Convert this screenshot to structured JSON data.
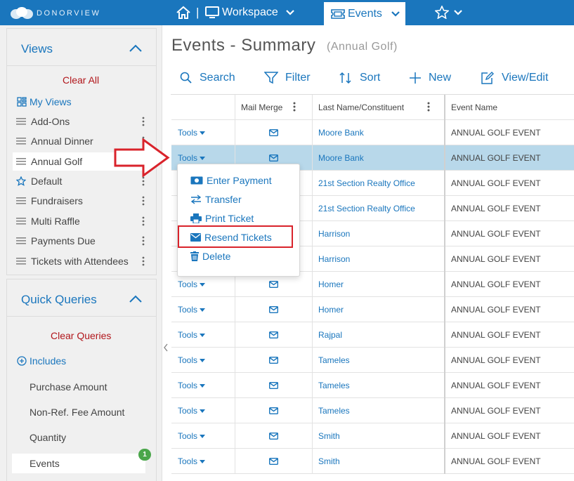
{
  "app": {
    "logo_text": "DONORVIEW"
  },
  "topnav": {
    "separator": "|",
    "workspace_label": "Workspace",
    "events_label": "Events"
  },
  "sidebar": {
    "views": {
      "title": "Views",
      "clear_all": "Clear All",
      "my_views": "My Views",
      "items": [
        {
          "label": "Add-Ons",
          "icon": "drag-handle-icon"
        },
        {
          "label": "Annual Dinner",
          "icon": "drag-handle-icon"
        },
        {
          "label": "Annual Golf",
          "icon": "drag-handle-icon",
          "active": true
        },
        {
          "label": "Default",
          "icon": "star-icon"
        },
        {
          "label": "Fundraisers",
          "icon": "drag-handle-icon"
        },
        {
          "label": "Multi Raffle",
          "icon": "drag-handle-icon"
        },
        {
          "label": "Payments Due",
          "icon": "drag-handle-icon"
        },
        {
          "label": "Tickets with Attendees",
          "icon": "drag-handle-icon"
        }
      ]
    },
    "quick_queries": {
      "title": "Quick Queries",
      "clear_queries": "Clear Queries",
      "includes": "Includes",
      "items": [
        {
          "label": "Purchase Amount"
        },
        {
          "label": "Non-Ref. Fee Amount"
        },
        {
          "label": "Quantity"
        },
        {
          "label": "Events",
          "active": true,
          "badge": "1"
        }
      ]
    }
  },
  "main": {
    "title": "Events - Summary",
    "subtitle": "(Annual Golf)",
    "toolbar": {
      "search": "Search",
      "filter": "Filter",
      "sort": "Sort",
      "new": "New",
      "view_edit": "View/Edit"
    },
    "grid": {
      "headers": [
        "",
        "Mail Merge",
        "Last Name/Constituent",
        "Event Name"
      ],
      "tools_label": "Tools",
      "rows": [
        {
          "name": "Moore Bank",
          "event": "ANNUAL GOLF EVENT"
        },
        {
          "name": "Moore Bank",
          "event": "ANNUAL GOLF EVENT",
          "selected": true
        },
        {
          "name": "21st Section Realty Office",
          "event": "ANNUAL GOLF EVENT"
        },
        {
          "name": "21st Section Realty Office",
          "event": "ANNUAL GOLF EVENT"
        },
        {
          "name": "Harrison",
          "event": "ANNUAL GOLF EVENT"
        },
        {
          "name": "Harrison",
          "event": "ANNUAL GOLF EVENT"
        },
        {
          "name": "Homer",
          "event": "ANNUAL GOLF EVENT"
        },
        {
          "name": "Homer",
          "event": "ANNUAL GOLF EVENT"
        },
        {
          "name": "Rajpal",
          "event": "ANNUAL GOLF EVENT"
        },
        {
          "name": "Tameles",
          "event": "ANNUAL GOLF EVENT"
        },
        {
          "name": "Tameles",
          "event": "ANNUAL GOLF EVENT"
        },
        {
          "name": "Tameles",
          "event": "ANNUAL GOLF EVENT"
        },
        {
          "name": "Smith",
          "event": "ANNUAL GOLF EVENT"
        },
        {
          "name": "Smith",
          "event": "ANNUAL GOLF EVENT"
        }
      ]
    },
    "tools_menu": {
      "items": [
        {
          "label": "Enter Payment",
          "icon": "money-icon"
        },
        {
          "label": "Transfer",
          "icon": "transfer-icon"
        },
        {
          "label": "Print Ticket",
          "icon": "print-icon"
        },
        {
          "label": "Resend Tickets",
          "icon": "envelope-icon",
          "highlighted": true
        },
        {
          "label": "Delete",
          "icon": "trash-icon"
        }
      ]
    }
  },
  "colors": {
    "brand": "#1a76bd",
    "danger": "#b1161b",
    "annotation": "#d9232b",
    "selected_row": "#b8d8ea",
    "badge": "#4aa64a"
  }
}
